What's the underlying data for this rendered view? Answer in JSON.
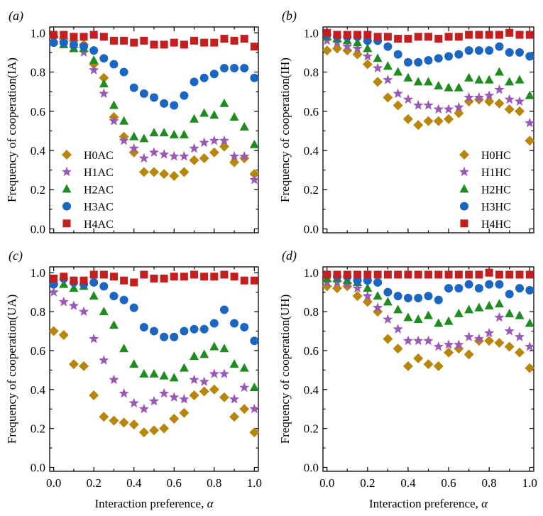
{
  "figure": {
    "xlabel_text": "Interaction preference, ",
    "xlabel_symbol": "α",
    "panels": [
      {
        "label": "(a)",
        "ylabel": "Frequency of cooperation(IA)",
        "legend_position": "bottom-left",
        "show_xlabel": false,
        "show_xticklabels": false
      },
      {
        "label": "(b)",
        "ylabel": "Frequency of cooperation(IH)",
        "legend_position": "bottom-right",
        "show_xlabel": false,
        "show_xticklabels": false
      },
      {
        "label": "(c)",
        "ylabel": "Frequency of cooperation(UA)",
        "legend_position": "none",
        "show_xlabel": true,
        "show_xticklabels": true
      },
      {
        "label": "(d)",
        "ylabel": "Frequency of cooperation(UH)",
        "legend_position": "none",
        "show_xlabel": true,
        "show_xticklabels": true
      }
    ],
    "series_styles": [
      {
        "marker": "diamond",
        "color": "#B8860B"
      },
      {
        "marker": "star",
        "color": "#9B59B6"
      },
      {
        "marker": "triangle",
        "color": "#1E8C1E"
      },
      {
        "marker": "circle",
        "color": "#1A66C2"
      },
      {
        "marker": "square",
        "color": "#C41E1E"
      }
    ]
  },
  "chart_data": [
    {
      "type": "scatter",
      "xlim": [
        0,
        1
      ],
      "ylim": [
        0,
        1
      ],
      "xticks": [
        "0.0",
        "0.2",
        "0.4",
        "0.6",
        "0.8",
        "1.0"
      ],
      "yticks": [
        "0.0",
        "0.2",
        "0.4",
        "0.6",
        "0.8",
        "1.0"
      ],
      "x": [
        0,
        0.05,
        0.1,
        0.15,
        0.2,
        0.25,
        0.3,
        0.35,
        0.4,
        0.45,
        0.5,
        0.55,
        0.6,
        0.65,
        0.7,
        0.75,
        0.8,
        0.85,
        0.9,
        0.95,
        1.0
      ],
      "series": [
        {
          "name": "H0AC",
          "values": [
            0.98,
            0.97,
            0.96,
            0.94,
            0.84,
            0.77,
            0.57,
            0.47,
            0.39,
            0.29,
            0.29,
            0.28,
            0.27,
            0.29,
            0.35,
            0.36,
            0.39,
            0.42,
            0.34,
            0.36,
            0.28
          ]
        },
        {
          "name": "H1AC",
          "values": [
            0.97,
            0.95,
            0.92,
            0.9,
            0.81,
            0.69,
            0.55,
            0.45,
            0.41,
            0.36,
            0.39,
            0.38,
            0.37,
            0.37,
            0.41,
            0.44,
            0.45,
            0.45,
            0.37,
            0.37,
            0.25
          ]
        },
        {
          "name": "H2AC",
          "values": [
            0.96,
            0.94,
            0.92,
            0.92,
            0.86,
            0.74,
            0.63,
            0.55,
            0.47,
            0.46,
            0.49,
            0.49,
            0.48,
            0.48,
            0.56,
            0.59,
            0.58,
            0.64,
            0.57,
            0.52,
            0.43
          ]
        },
        {
          "name": "H3AC",
          "values": [
            0.95,
            0.95,
            0.94,
            0.93,
            0.91,
            0.87,
            0.84,
            0.8,
            0.72,
            0.69,
            0.67,
            0.64,
            0.63,
            0.68,
            0.75,
            0.77,
            0.79,
            0.82,
            0.82,
            0.82,
            0.77
          ]
        },
        {
          "name": "H4AC",
          "values": [
            0.99,
            0.99,
            0.98,
            0.98,
            0.99,
            0.98,
            0.96,
            0.96,
            0.95,
            0.96,
            0.94,
            0.94,
            0.95,
            0.94,
            0.96,
            0.95,
            0.95,
            0.97,
            0.96,
            0.97,
            0.93
          ]
        }
      ]
    },
    {
      "type": "scatter",
      "xlim": [
        0,
        1
      ],
      "ylim": [
        0,
        1
      ],
      "xticks": [
        "0.0",
        "0.2",
        "0.4",
        "0.6",
        "0.8",
        "1.0"
      ],
      "yticks": [
        "0.0",
        "0.2",
        "0.4",
        "0.6",
        "0.8",
        "1.0"
      ],
      "x": [
        0,
        0.05,
        0.1,
        0.15,
        0.2,
        0.25,
        0.3,
        0.35,
        0.4,
        0.45,
        0.5,
        0.55,
        0.6,
        0.65,
        0.7,
        0.75,
        0.8,
        0.85,
        0.9,
        0.95,
        1.0
      ],
      "series": [
        {
          "name": "H0HC",
          "values": [
            0.91,
            0.92,
            0.91,
            0.89,
            0.84,
            0.75,
            0.67,
            0.63,
            0.56,
            0.53,
            0.55,
            0.55,
            0.56,
            0.59,
            0.65,
            0.66,
            0.65,
            0.64,
            0.61,
            0.6,
            0.45
          ]
        },
        {
          "name": "H1HC",
          "values": [
            0.96,
            0.95,
            0.93,
            0.92,
            0.88,
            0.82,
            0.76,
            0.69,
            0.66,
            0.63,
            0.63,
            0.61,
            0.61,
            0.62,
            0.67,
            0.67,
            0.68,
            0.71,
            0.66,
            0.65,
            0.54
          ]
        },
        {
          "name": "H2HC",
          "values": [
            0.98,
            0.97,
            0.96,
            0.95,
            0.92,
            0.87,
            0.83,
            0.8,
            0.77,
            0.75,
            0.75,
            0.73,
            0.72,
            0.72,
            0.77,
            0.76,
            0.76,
            0.8,
            0.75,
            0.76,
            0.68
          ]
        },
        {
          "name": "H3HC",
          "values": [
            0.99,
            0.98,
            0.98,
            0.98,
            0.96,
            0.96,
            0.93,
            0.89,
            0.85,
            0.85,
            0.86,
            0.87,
            0.88,
            0.89,
            0.91,
            0.91,
            0.91,
            0.93,
            0.9,
            0.9,
            0.88
          ]
        },
        {
          "name": "H4HC",
          "values": [
            1.0,
            0.99,
            0.99,
            0.99,
            0.99,
            0.98,
            0.98,
            0.97,
            0.97,
            0.98,
            0.98,
            0.97,
            0.98,
            0.98,
            0.99,
            0.99,
            0.99,
            0.99,
            1.0,
            0.99,
            0.99
          ]
        }
      ]
    },
    {
      "type": "scatter",
      "xlim": [
        0,
        1
      ],
      "ylim": [
        0,
        1
      ],
      "xticks": [
        "0.0",
        "0.2",
        "0.4",
        "0.6",
        "0.8",
        "1.0"
      ],
      "yticks": [
        "0.0",
        "0.2",
        "0.4",
        "0.6",
        "0.8",
        "1.0"
      ],
      "x": [
        0,
        0.05,
        0.1,
        0.15,
        0.2,
        0.25,
        0.3,
        0.35,
        0.4,
        0.45,
        0.5,
        0.55,
        0.6,
        0.65,
        0.7,
        0.75,
        0.8,
        0.85,
        0.9,
        0.95,
        1.0
      ],
      "series": [
        {
          "name": "H0AC",
          "values": [
            0.7,
            0.68,
            0.53,
            0.52,
            0.37,
            0.26,
            0.24,
            0.23,
            0.22,
            0.18,
            0.19,
            0.2,
            0.25,
            0.28,
            0.37,
            0.39,
            0.4,
            0.36,
            0.26,
            0.3,
            0.18
          ]
        },
        {
          "name": "H1AC",
          "values": [
            0.9,
            0.85,
            0.83,
            0.8,
            0.66,
            0.55,
            0.45,
            0.38,
            0.33,
            0.3,
            0.34,
            0.38,
            0.36,
            0.35,
            0.45,
            0.44,
            0.48,
            0.48,
            0.35,
            0.41,
            0.3
          ]
        },
        {
          "name": "H2AC",
          "values": [
            0.96,
            0.94,
            0.92,
            0.93,
            0.88,
            0.8,
            0.73,
            0.61,
            0.53,
            0.48,
            0.48,
            0.47,
            0.46,
            0.51,
            0.57,
            0.58,
            0.62,
            0.61,
            0.53,
            0.51,
            0.41
          ]
        },
        {
          "name": "H3AC",
          "values": [
            0.94,
            0.97,
            0.95,
            0.94,
            0.95,
            0.93,
            0.88,
            0.86,
            0.82,
            0.72,
            0.7,
            0.67,
            0.67,
            0.7,
            0.71,
            0.71,
            0.74,
            0.81,
            0.74,
            0.72,
            0.65
          ]
        },
        {
          "name": "H4AC",
          "values": [
            0.97,
            0.98,
            0.96,
            0.96,
            0.99,
            0.99,
            0.98,
            0.96,
            0.95,
            0.99,
            0.97,
            0.97,
            0.98,
            0.98,
            0.99,
            0.98,
            0.98,
            0.99,
            0.98,
            0.96,
            0.96
          ]
        }
      ]
    },
    {
      "type": "scatter",
      "xlim": [
        0,
        1
      ],
      "ylim": [
        0,
        1
      ],
      "xticks": [
        "0.0",
        "0.2",
        "0.4",
        "0.6",
        "0.8",
        "1.0"
      ],
      "yticks": [
        "0.0",
        "0.2",
        "0.4",
        "0.6",
        "0.8",
        "1.0"
      ],
      "x": [
        0,
        0.05,
        0.1,
        0.15,
        0.2,
        0.25,
        0.3,
        0.35,
        0.4,
        0.45,
        0.5,
        0.55,
        0.6,
        0.65,
        0.7,
        0.75,
        0.8,
        0.85,
        0.9,
        0.95,
        1.0
      ],
      "series": [
        {
          "name": "H0HC",
          "values": [
            0.93,
            0.92,
            0.93,
            0.88,
            0.85,
            0.8,
            0.66,
            0.61,
            0.52,
            0.56,
            0.53,
            0.52,
            0.59,
            0.61,
            0.58,
            0.65,
            0.65,
            0.64,
            0.62,
            0.59,
            0.51
          ]
        },
        {
          "name": "H1HC",
          "values": [
            0.95,
            0.95,
            0.94,
            0.92,
            0.88,
            0.82,
            0.76,
            0.71,
            0.65,
            0.65,
            0.65,
            0.62,
            0.63,
            0.63,
            0.67,
            0.66,
            0.69,
            0.77,
            0.7,
            0.67,
            0.62
          ]
        },
        {
          "name": "H2HC",
          "values": [
            0.97,
            0.97,
            0.96,
            0.95,
            0.92,
            0.88,
            0.85,
            0.81,
            0.77,
            0.76,
            0.78,
            0.74,
            0.75,
            0.79,
            0.81,
            0.82,
            0.83,
            0.84,
            0.79,
            0.78,
            0.74
          ]
        },
        {
          "name": "H3HC",
          "values": [
            0.99,
            0.98,
            0.98,
            0.96,
            0.96,
            0.95,
            0.9,
            0.88,
            0.87,
            0.87,
            0.88,
            0.86,
            0.92,
            0.92,
            0.94,
            0.92,
            0.94,
            0.94,
            0.89,
            0.92,
            0.91
          ]
        },
        {
          "name": "H4HC",
          "values": [
            0.99,
            0.99,
            0.99,
            0.99,
            0.99,
            0.99,
            0.99,
            0.99,
            0.99,
            0.99,
            0.99,
            0.99,
            0.99,
            0.99,
            0.99,
            0.99,
            1.0,
            0.99,
            0.99,
            0.99,
            0.99
          ]
        }
      ]
    }
  ]
}
